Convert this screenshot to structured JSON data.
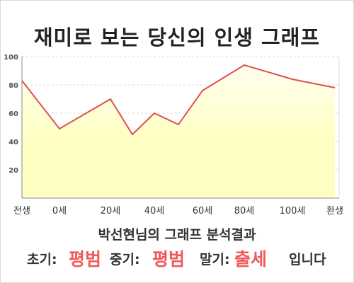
{
  "title": "재미로 보는 당신의 인생 그래프",
  "chart_data": {
    "type": "area",
    "x_ticks": [
      "전생",
      "0세",
      "20세",
      "40세",
      "60세",
      "80세",
      "100세",
      "환생"
    ],
    "y_ticks": [
      20,
      40,
      60,
      80,
      100
    ],
    "ylim": [
      0,
      100
    ],
    "x": [
      -1,
      0,
      20,
      30,
      40,
      50,
      60,
      80,
      100,
      120
    ],
    "values": [
      83,
      49,
      70,
      45,
      60,
      52,
      76,
      94,
      84,
      78
    ],
    "grid": true,
    "colors": {
      "line": "#e05050",
      "fill": "#ffffc4",
      "fill_top": "#fffff0"
    }
  },
  "result": {
    "heading": "박선현님의 그래프 분석결과",
    "early_label": "초기:",
    "early_value": "평범",
    "mid_label": "중기:",
    "mid_value": "평범",
    "late_label": "말기:",
    "late_value": "출세",
    "suffix": "입니다"
  }
}
